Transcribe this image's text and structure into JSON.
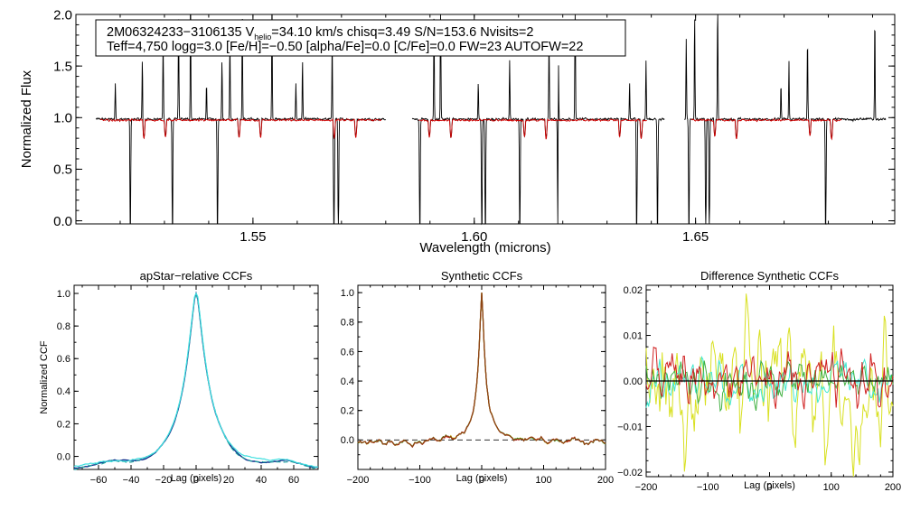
{
  "chart_data": [
    {
      "id": "spectrum",
      "type": "line",
      "title": "",
      "xlabel": "Wavelength (microns)",
      "ylabel": "Normalized Flux",
      "xlim": [
        1.51,
        1.695
      ],
      "ylim": [
        -0.03,
        2.0
      ],
      "xticks": [
        1.55,
        1.6,
        1.65
      ],
      "xtick_labels": [
        "1.55",
        "1.60",
        "1.65"
      ],
      "yticks": [
        0.0,
        0.5,
        1.0,
        1.5,
        2.0
      ],
      "ytick_labels": [
        "0.0",
        "0.5",
        "1.0",
        "1.5",
        "2.0"
      ],
      "annotation": {
        "line1_start": "2M06324233−3106135  V",
        "line1_sub": "helio",
        "line1_end": "=34.10 km/s  chisq=3.49  S/N=153.6  Nvisits=2",
        "line2": "Teff=4,750 logg=3.0 [Fe/H]=−0.50 [alpha/Fe]=0.0 [C/Fe]=0.0 FW=23 AUTOFW=22"
      },
      "chips": [
        [
          1.5145,
          1.58
        ],
        [
          1.586,
          1.643
        ],
        [
          1.6475,
          1.693
        ]
      ],
      "model_chips": [
        [
          1.5155,
          1.579
        ],
        [
          1.5875,
          1.639
        ],
        [
          1.649,
          1.683
        ]
      ],
      "absorption_lines_observed": [
        1.5223,
        1.5318,
        1.542,
        1.5683,
        1.5693,
        1.5877,
        1.6017,
        1.6025,
        1.6103,
        1.6189,
        1.6367,
        1.6414,
        1.6485,
        1.6523,
        1.6531,
        1.6794
      ],
      "emission_spikes": [
        1.5189,
        1.525,
        1.5297,
        1.5332,
        1.5359,
        1.5395,
        1.543,
        1.5448,
        1.5476,
        1.5543,
        1.5597,
        1.5612,
        1.5679,
        1.5909,
        1.5924,
        1.6009,
        1.608,
        1.6169,
        1.619,
        1.6228,
        1.6351,
        1.6388,
        1.6479,
        1.6498,
        1.655,
        1.6693,
        1.6711,
        1.6753,
        1.6905
      ],
      "series": [
        {
          "name": "observed spectrum",
          "color": "#000000"
        },
        {
          "name": "best-fit model",
          "color": "#cc0000"
        }
      ]
    },
    {
      "id": "apstar_ccf",
      "type": "line",
      "title": "apStar−relative CCFs",
      "xlabel": "Lag (pixels)",
      "ylabel": "Normalized CCF",
      "xlim": [
        -75,
        75
      ],
      "ylim": [
        -0.08,
        1.05
      ],
      "xticks": [
        -60,
        -40,
        -20,
        0,
        20,
        40,
        60
      ],
      "xtick_labels": [
        "−60",
        "−40",
        "−20",
        "0",
        "20",
        "40",
        "60"
      ],
      "yticks": [
        0.0,
        0.2,
        0.4,
        0.6,
        0.8,
        1.0
      ],
      "ytick_labels": [
        "0.0",
        "0.2",
        "0.4",
        "0.6",
        "0.8",
        "1.0"
      ],
      "peak": {
        "lag": 0,
        "value": 1.0
      },
      "series": [
        {
          "name": "visit CCF (blue)",
          "color": "#0b2a8a"
        },
        {
          "name": "visit CCF (teal)",
          "color": "#20a0a0"
        },
        {
          "name": "visit CCF (cyan)",
          "color": "#40e0e0"
        }
      ]
    },
    {
      "id": "synthetic_ccf",
      "type": "line",
      "title": "Synthetic CCFs",
      "xlabel": "Lag (pixels)",
      "ylabel": "",
      "xlim": [
        -200,
        200
      ],
      "ylim": [
        -0.2,
        1.05
      ],
      "xticks": [
        -200,
        -100,
        0,
        100,
        200
      ],
      "xtick_labels": [
        "−200",
        "−100",
        "0",
        "100",
        "200"
      ],
      "yticks": [
        0.0,
        0.2,
        0.4,
        0.6,
        0.8,
        1.0
      ],
      "ytick_labels": [
        "0.0",
        "0.2",
        "0.4",
        "0.6",
        "0.8",
        "1.0"
      ],
      "peak": {
        "lag": 0,
        "value": 1.0
      },
      "reference_line": {
        "y": 0.0,
        "style": "dashed"
      },
      "series": [
        {
          "name": "CCF yellow",
          "color": "#d8e020"
        },
        {
          "name": "CCF green",
          "color": "#30b030"
        },
        {
          "name": "CCF red",
          "color": "#cc2020"
        },
        {
          "name": "CCF brown",
          "color": "#8b4513"
        }
      ]
    },
    {
      "id": "difference_ccf",
      "type": "line",
      "title": "Difference Synthetic CCFs",
      "xlabel": "Lag (pixels)",
      "ylabel": "",
      "xlim": [
        -200,
        200
      ],
      "ylim": [
        -0.021,
        0.021
      ],
      "xticks": [
        -200,
        -100,
        0,
        100,
        200
      ],
      "xtick_labels": [
        "−200",
        "−100",
        "0",
        "100",
        "200"
      ],
      "yticks": [
        -0.02,
        -0.01,
        0.0,
        0.01,
        0.02
      ],
      "ytick_labels": [
        "−0.02",
        "−0.01",
        "0.00",
        "0.01",
        "0.02"
      ],
      "reference_line": {
        "y": 0.0,
        "style": "solid"
      },
      "series": [
        {
          "name": "difference yellow",
          "color": "#d8e020"
        },
        {
          "name": "difference cyan",
          "color": "#40e8d0"
        },
        {
          "name": "difference green",
          "color": "#40b040"
        },
        {
          "name": "difference red",
          "color": "#d02020"
        }
      ]
    }
  ]
}
